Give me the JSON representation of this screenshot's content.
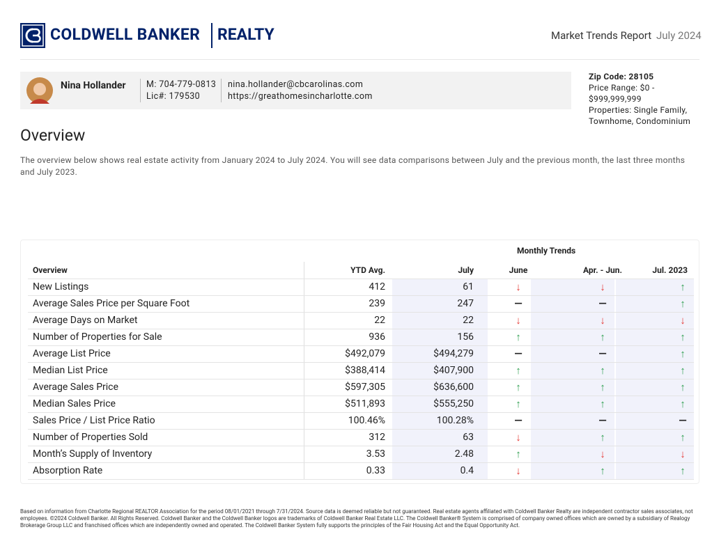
{
  "header": {
    "brand": "COLDWELL BANKER",
    "brand_sub": "REALTY",
    "report_title": "Market Trends Report",
    "report_date": "July 2024"
  },
  "agent": {
    "name": "Nina Hollander",
    "mobile": "M: 704-779-0813",
    "license": "Lic#: 179530",
    "email": "nina.hollander@cbcarolinas.com",
    "website": "https://greathomesincharlotte.com"
  },
  "criteria": {
    "zip": "Zip Code: 28105",
    "price": "Price Range: $0 - $999,999,999",
    "properties": "Properties: Single Family, Townhome, Condominium"
  },
  "overview": {
    "title": "Overview",
    "description": "The overview below shows real estate activity from January 2024 to July 2024. You will see data comparisons between July and the previous month, the last three months and July 2023."
  },
  "table": {
    "group_header": "Monthly Trends",
    "columns": [
      "Overview",
      "YTD Avg.",
      "July",
      "June",
      "Apr. - Jun.",
      "Jul. 2023"
    ],
    "rows": [
      [
        "New Listings",
        "412",
        "61",
        {
          "symbol": "↓",
          "color": "#e53935"
        },
        {
          "symbol": "↓",
          "color": "#e53935"
        },
        {
          "symbol": "↑",
          "color": "#2e9e4f"
        }
      ],
      [
        "Average Sales Price per Square Foot",
        "239",
        "247",
        {
          "symbol": "—",
          "color": "#222"
        },
        {
          "symbol": "—",
          "color": "#222"
        },
        {
          "symbol": "↑",
          "color": "#2e9e4f"
        }
      ],
      [
        "Average Days on Market",
        "22",
        "22",
        {
          "symbol": "↓",
          "color": "#e53935"
        },
        {
          "symbol": "↓",
          "color": "#e53935"
        },
        {
          "symbol": "↓",
          "color": "#e53935"
        }
      ],
      [
        "Number of Properties for Sale",
        "936",
        "156",
        {
          "symbol": "↑",
          "color": "#2e9e4f"
        },
        {
          "symbol": "↑",
          "color": "#2e9e4f"
        },
        {
          "symbol": "↑",
          "color": "#2e9e4f"
        }
      ],
      [
        "Average List Price",
        "$492,079",
        "$494,279",
        {
          "symbol": "—",
          "color": "#222"
        },
        {
          "symbol": "—",
          "color": "#222"
        },
        {
          "symbol": "↑",
          "color": "#2e9e4f"
        }
      ],
      [
        "Median List Price",
        "$388,414",
        "$407,900",
        {
          "symbol": "↑",
          "color": "#2e9e4f"
        },
        {
          "symbol": "↑",
          "color": "#2e9e4f"
        },
        {
          "symbol": "↑",
          "color": "#2e9e4f"
        }
      ],
      [
        "Average Sales Price",
        "$597,305",
        "$636,600",
        {
          "symbol": "↑",
          "color": "#2e9e4f"
        },
        {
          "symbol": "↑",
          "color": "#2e9e4f"
        },
        {
          "symbol": "↑",
          "color": "#2e9e4f"
        }
      ],
      [
        "Median Sales Price",
        "$511,893",
        "$555,250",
        {
          "symbol": "↑",
          "color": "#2e9e4f"
        },
        {
          "symbol": "↑",
          "color": "#2e9e4f"
        },
        {
          "symbol": "↑",
          "color": "#2e9e4f"
        }
      ],
      [
        "Sales Price / List Price Ratio",
        "100.46%",
        "100.28%",
        {
          "symbol": "—",
          "color": "#222"
        },
        {
          "symbol": "—",
          "color": "#222"
        },
        {
          "symbol": "—",
          "color": "#222"
        }
      ],
      [
        "Number of Properties Sold",
        "312",
        "63",
        {
          "symbol": "↓",
          "color": "#e53935"
        },
        {
          "symbol": "↑",
          "color": "#2e9e4f"
        },
        {
          "symbol": "↑",
          "color": "#2e9e4f"
        }
      ],
      [
        "Month’s Supply of Inventory",
        "3.53",
        "2.48",
        {
          "symbol": "↑",
          "color": "#2e9e4f"
        },
        {
          "symbol": "↓",
          "color": "#e53935"
        },
        {
          "symbol": "↓",
          "color": "#e53935"
        }
      ],
      [
        "Absorption Rate",
        "0.33",
        "0.4",
        {
          "symbol": "↓",
          "color": "#e53935"
        },
        {
          "symbol": "↑",
          "color": "#2e9e4f"
        },
        {
          "symbol": "↑",
          "color": "#2e9e4f"
        }
      ]
    ]
  },
  "footer": {
    "disclaimer": "Based on information from Charlotte Regional REALTOR Association for the period 08/01/2021 through 7/31/2024. Source data is deemed reliable but not guaranteed. Real estate agents affiliated with Coldwell Banker Realty are independent contractor sales associates, not employees. ©2024 Coldwell Banker. All Rights Reserved. Coldwell Banker and the Coldwell Banker logos are trademarks of Coldwell Banker Real Estate LLC. The Coldwell Banker® System is comprised of company owned offices which are owned by a subsidiary of Realogy Brokerage Group LLC and franchised offices which are independently owned and operated. The Coldwell Banker System fully supports the principles of the Fair Housing Act and the Equal Opportunity Act."
  }
}
